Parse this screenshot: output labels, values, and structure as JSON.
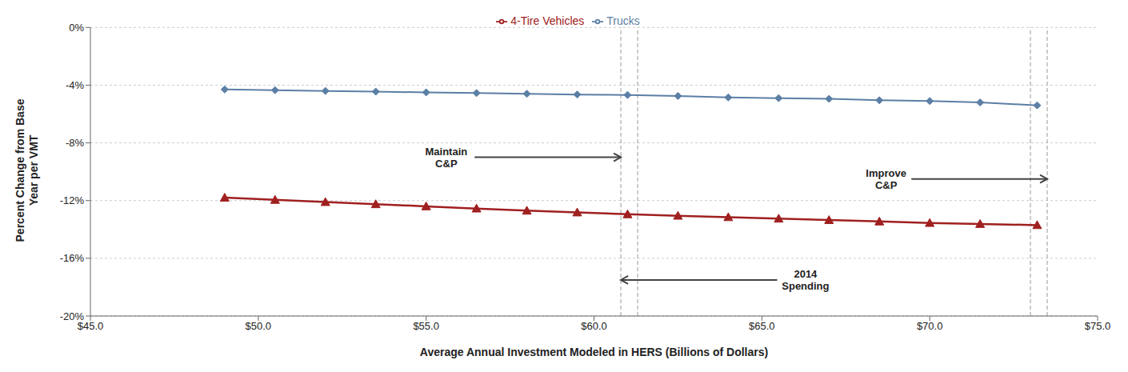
{
  "chart_data": {
    "type": "line",
    "xlabel": "Average Annual Investment Modeled in HERS (Billions of Dollars)",
    "ylabel": "Percent Change from Base\nYear per VMT",
    "x": [
      49.0,
      50.5,
      52.0,
      53.5,
      55.0,
      56.5,
      58.0,
      59.5,
      61.0,
      62.5,
      64.0,
      65.5,
      67.0,
      68.5,
      70.0,
      71.5,
      73.2
    ],
    "series": [
      {
        "name": "Trucks",
        "color": "#5b7fa5",
        "marker": "diamond",
        "values": [
          -4.3,
          -4.35,
          -4.4,
          -4.45,
          -4.5,
          -4.55,
          -4.6,
          -4.65,
          -4.68,
          -4.75,
          -4.85,
          -4.9,
          -4.95,
          -5.05,
          -5.1,
          -5.2,
          -5.4
        ]
      },
      {
        "name": "4-Tire Vehicles",
        "color": "#a02020",
        "marker": "triangle",
        "values": [
          -11.8,
          -11.95,
          -12.1,
          -12.25,
          -12.4,
          -12.55,
          -12.7,
          -12.82,
          -12.95,
          -13.05,
          -13.15,
          -13.25,
          -13.35,
          -13.45,
          -13.55,
          -13.62,
          -13.7
        ]
      }
    ],
    "xlim": [
      45.0,
      75.0
    ],
    "ylim": [
      -20,
      0
    ],
    "xticks": [
      {
        "value": 45.0,
        "label": "$45.0"
      },
      {
        "value": 50.0,
        "label": "$50.0"
      },
      {
        "value": 55.0,
        "label": "$55.0"
      },
      {
        "value": 60.0,
        "label": "$60.0"
      },
      {
        "value": 65.0,
        "label": "$65.0"
      },
      {
        "value": 70.0,
        "label": "$70.0"
      },
      {
        "value": 75.0,
        "label": "$75.0"
      }
    ],
    "yticks": [
      {
        "value": 0,
        "label": "0%"
      },
      {
        "value": -4,
        "label": "-4%"
      },
      {
        "value": -8,
        "label": "-8%"
      },
      {
        "value": -12,
        "label": "-12%"
      },
      {
        "value": -16,
        "label": "-16%"
      },
      {
        "value": -20,
        "label": "-20%"
      }
    ],
    "grid": true,
    "legend": "top",
    "vlines": [
      60.8,
      61.3,
      73.0,
      73.5
    ],
    "annotations": [
      {
        "text": "Maintain\nC&P",
        "x": 60.8,
        "y": -9.0,
        "text_x": 55.6
      },
      {
        "text": "Improve\nC&P",
        "x": 73.5,
        "y": -10.5,
        "text_x": 68.7
      },
      {
        "text": "2014\nSpending",
        "x": 60.8,
        "y": -17.5,
        "text_x": 66.3
      }
    ]
  }
}
